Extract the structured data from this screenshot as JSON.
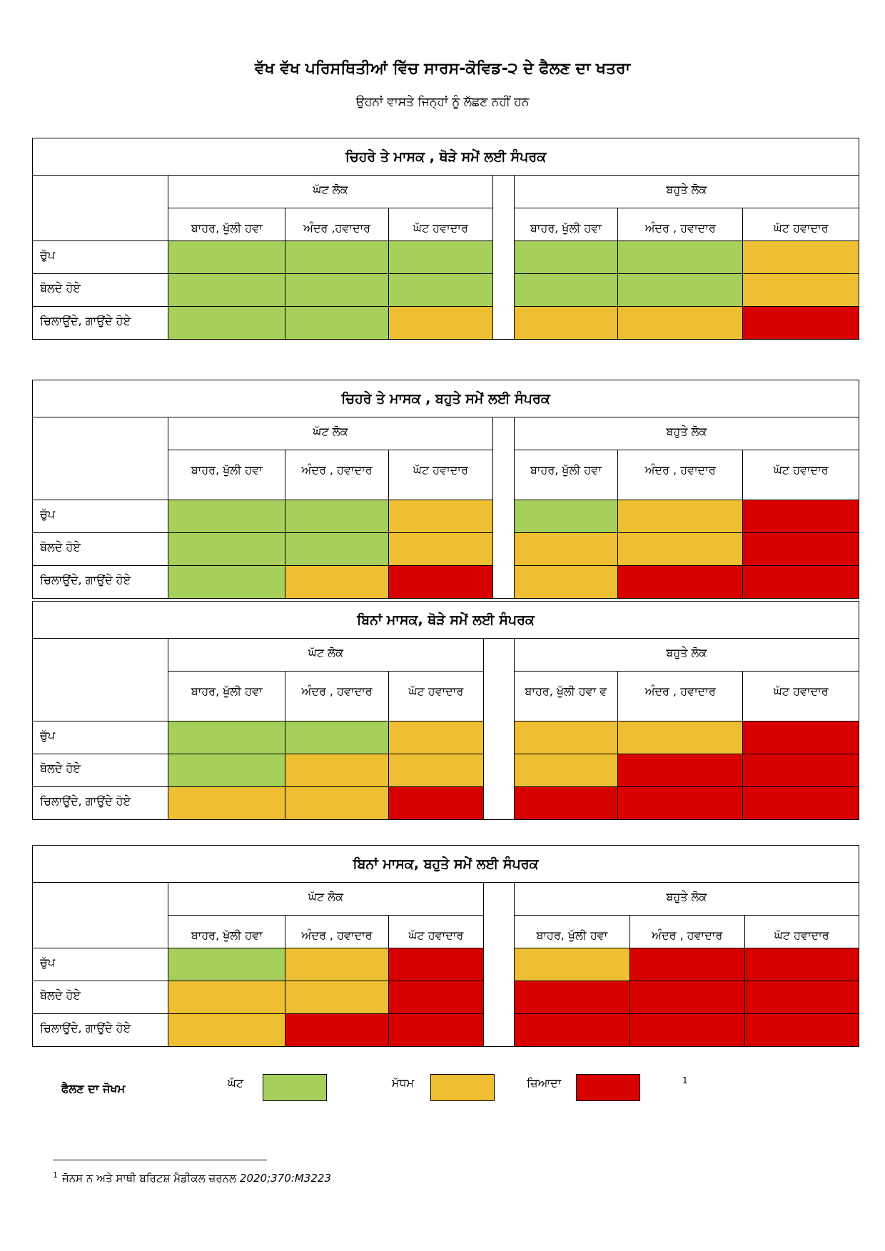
{
  "title": "ਵੱਖ ਵੱਖ ਪਰਿਸਥਿਤੀਆਂ ਵਿੱਚ ਸਾਰਸ-ਕੋਵਿਡ-੨ ਦੇ ਫੈਲਣ ਦਾ ਖਤਰਾ",
  "subtitle": "ਉਹਨਾਂ ਵਾਸਤੇ ਜਿਨ੍ਹਾਂ ਨੂੰ ਲੱਛਣ ਨਹੀਂ ਹਨ",
  "colors": {
    "low": "#a6cf5c",
    "medium": "#eebe33",
    "high": "#d90000"
  },
  "tables": [
    {
      "caption": "ਚਿਹਰੇ ਤੇ ਮਾਸਕ , ਥੋੜੇ ਸਮੇਂ ਲਈ ਸੰਪਰਕ",
      "group_left": "ਘੱਟ ਲੋਕ",
      "group_right": "ਬਹੁਤੇ ਲੋਕ",
      "col_headers": [
        "ਬਾਹਰ, ਖੁੱਲੀ ਹਵਾ",
        "ਅੰਦਰ ,ਹਵਾਦਾਰ",
        "ਘੱਟ ਹਵਾਦਾਰ",
        "ਬਾਹਰ, ਖੁੱਲੀ ਹਵਾ",
        "ਅੰਦਰ , ਹਵਾਦਾਰ",
        "ਘੱਟ ਹਵਾਦਾਰ"
      ],
      "row_labels": [
        "ਚੁੱਪ",
        "ਬੋਲਦੇ ਹੋਏ",
        "ਚਿਲਾਉਂਦੇ, ਗਾਉਂਦੇ ਹੋਏ"
      ],
      "risk": [
        [
          "low",
          "low",
          "low",
          "low",
          "low",
          "medium"
        ],
        [
          "low",
          "low",
          "low",
          "low",
          "low",
          "medium"
        ],
        [
          "low",
          "low",
          "medium",
          "medium",
          "medium",
          "high"
        ]
      ]
    },
    {
      "caption": "ਚਿਹਰੇ ਤੇ ਮਾਸਕ , ਬਹੁਤੇ ਸਮੇਂ ਲਈ ਸੰਪਰਕ",
      "group_left": "ਘੱਟ ਲੋਕ",
      "group_right": "ਬਹੁਤੇ ਲੋਕ",
      "col_headers": [
        "ਬਾਹਰ, ਖੁੱਲੀ ਹਵਾ",
        "ਅੰਦਰ , ਹਵਾਦਾਰ",
        "ਘੱਟ ਹਵਾਦਾਰ",
        "ਬਾਹਰ, ਖੁੱਲੀ ਹਵਾ",
        "ਅੰਦਰ , ਹਵਾਦਾਰ",
        "ਘੱਟ ਹਵਾਦਾਰ"
      ],
      "row_labels": [
        "ਚੁੱਪ",
        "ਬੋਲਦੇ ਹੋਏ",
        "ਚਿਲਾਉਂਦੇ, ਗਾਉਂਦੇ ਹੋਏ"
      ],
      "risk": [
        [
          "low",
          "low",
          "medium",
          "low",
          "medium",
          "high"
        ],
        [
          "low",
          "low",
          "medium",
          "medium",
          "medium",
          "high"
        ],
        [
          "low",
          "medium",
          "high",
          "medium",
          "high",
          "high"
        ]
      ]
    },
    {
      "caption": "ਬਿਨਾਂ ਮਾਸਕ, ਥੋੜੇ ਸਮੇਂ ਲਈ ਸੰਪਰਕ",
      "group_left": "ਘੱਟ ਲੋਕ",
      "group_right": "ਬਹੁਤੇ ਲੋਕ",
      "col_headers": [
        "ਬਾਹਰ, ਖੁੱਲੀ ਹਵਾ",
        "ਅੰਦਰ , ਹਵਾਦਾਰ",
        "ਘੱਟ ਹਵਾਦਾਰ",
        "ਬਾਹਰ, ਖੁੱਲੀ ਹਵਾ ਵ",
        "ਅੰਦਰ , ਹਵਾਦਾਰ",
        "ਘੱਟ ਹਵਾਦਾਰ"
      ],
      "row_labels": [
        "ਚੁੱਪ",
        "ਬੋਲਦੇ ਹੋਏ",
        "ਚਿਲਾਉਂਦੇ, ਗਾਉਂਦੇ ਹੋਏ"
      ],
      "risk": [
        [
          "low",
          "low",
          "medium",
          "medium",
          "medium",
          "high"
        ],
        [
          "low",
          "medium",
          "medium",
          "medium",
          "high",
          "high"
        ],
        [
          "medium",
          "medium",
          "high",
          "high",
          "high",
          "high"
        ]
      ]
    },
    {
      "caption": "ਬਿਨਾਂ ਮਾਸਕ, ਬਹੁਤੇ ਸਮੇਂ ਲਈ ਸੰਪਰਕ",
      "group_left": "ਘੱਟ ਲੋਕ",
      "group_right": "ਬਹੁਤੇ ਲੋਕ",
      "col_headers": [
        "ਬਾਹਰ, ਖੁੱਲੀ ਹਵਾ",
        "ਅੰਦਰ , ਹਵਾਦਾਰ",
        "ਘੱਟ  ਹਵਾਦਾਰ",
        "ਬਾਹਰ, ਖੁੱਲੀ ਹਵਾ",
        "ਅੰਦਰ , ਹਵਾਦਾਰ",
        "ਘੱਟ ਹਵਾਦਾਰ"
      ],
      "row_labels": [
        "ਚੁੱਪ",
        "ਬੋਲਦੇ ਹੋਏ",
        "ਚਿਲਾਉਂਦੇ, ਗਾਉਂਦੇ ਹੋਏ"
      ],
      "risk": [
        [
          "low",
          "medium",
          "high",
          "medium",
          "high",
          "high"
        ],
        [
          "medium",
          "medium",
          "high",
          "high",
          "high",
          "high"
        ],
        [
          "medium",
          "high",
          "high",
          "high",
          "high",
          "high"
        ]
      ]
    }
  ],
  "legend": {
    "title": "ਫੈਲਣ ਦਾ ਜੋਖਮ",
    "low": "ਘੱਟ",
    "medium": "ਮੱਧਮ",
    "high": "ਜ਼ਿਆਦਾ",
    "footnote_ref": "1"
  },
  "footnote": {
    "number": "1",
    "text": "ਜੋਨਸ ਨ ਅਤੇ ਸਾਥੀ ਬਰਿਟਸ਼ ਮੈਡੀਕਲ ਜ਼ਰਨਲ ",
    "citation": "2020;370:M3223"
  }
}
